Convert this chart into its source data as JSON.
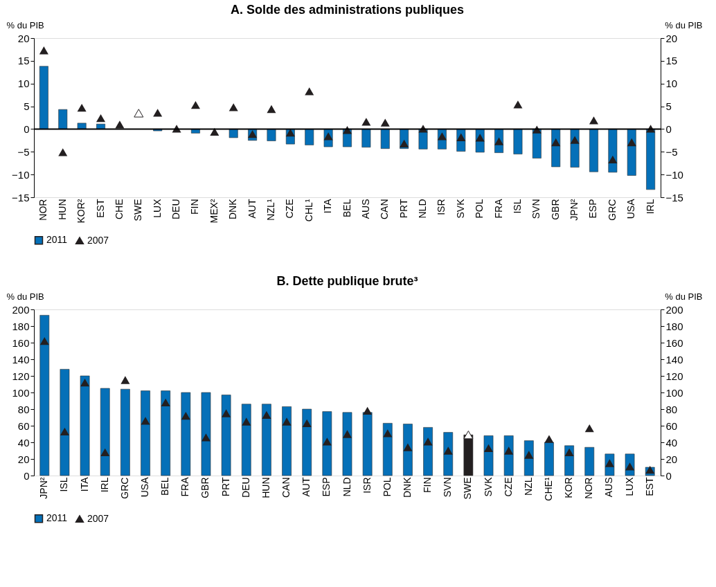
{
  "chart_data": [
    {
      "type": "bar",
      "title": "A. Solde des administrations publiques",
      "ylabel": "% du PIB",
      "y2label": "% du PIB",
      "categories": [
        "NOR",
        "HUN",
        "KOR²",
        "EST",
        "CHE",
        "SWE",
        "LUX",
        "DEU",
        "FIN",
        "MEX²",
        "DNK",
        "AUT",
        "NZL¹",
        "CZE",
        "CHL¹",
        "ITA",
        "BEL",
        "AUS",
        "CAN",
        "PRT",
        "NLD",
        "ISR",
        "SVK",
        "POL",
        "FRA",
        "ISL",
        "SVN",
        "GBR",
        "JPN²",
        "ESP",
        "GRC",
        "USA",
        "IRL"
      ],
      "series": [
        {
          "name": "2011",
          "color": "#0570b8",
          "colors": [
            "#0570b8",
            "#0570b8",
            "#0570b8",
            "#0570b8",
            "#0570b8",
            "#231f20",
            "#0570b8",
            "#0570b8",
            "#0570b8",
            "#0570b8",
            "#0570b8",
            "#0570b8",
            "#0570b8",
            "#0570b8",
            "#0570b8",
            "#0570b8",
            "#0570b8",
            "#0570b8",
            "#0570b8",
            "#0570b8",
            "#0570b8",
            "#0570b8",
            "#0570b8",
            "#0570b8",
            "#0570b8",
            "#0570b8",
            "#0570b8",
            "#0570b8",
            "#0570b8",
            "#0570b8",
            "#0570b8",
            "#0570b8",
            "#0570b8"
          ],
          "values": [
            13.8,
            4.3,
            1.3,
            1.1,
            null,
            null,
            -0.4,
            null,
            -0.9,
            null,
            -1.9,
            -2.5,
            -2.6,
            -3.3,
            -3.5,
            -3.9,
            -3.9,
            -4.0,
            -4.3,
            -4.3,
            -4.4,
            -4.4,
            -4.9,
            -5.1,
            -5.2,
            -5.5,
            -6.4,
            -8.3,
            -8.4,
            -9.4,
            -9.5,
            -10.2,
            -13.3
          ]
        },
        {
          "name": "2007",
          "type": "scatter",
          "marker": "triangle",
          "color": "#231f20",
          "colors": [
            "#231f20",
            "#231f20",
            "#231f20",
            "#231f20",
            "#231f20",
            "#ffffff",
            "#231f20",
            "#231f20",
            "#231f20",
            "#231f20",
            "#231f20",
            "#231f20",
            "#231f20",
            "#231f20",
            "#231f20",
            "#231f20",
            "#231f20",
            "#231f20",
            "#231f20",
            "#231f20",
            "#231f20",
            "#231f20",
            "#231f20",
            "#231f20",
            "#231f20",
            "#231f20",
            "#231f20",
            "#231f20",
            "#231f20",
            "#231f20",
            "#231f20",
            "#231f20",
            "#231f20"
          ],
          "values": [
            17.3,
            -5.1,
            4.7,
            2.4,
            1.0,
            3.5,
            3.6,
            0.1,
            5.3,
            -0.6,
            4.8,
            -1.1,
            4.4,
            -0.8,
            8.3,
            -1.6,
            -0.2,
            1.6,
            1.4,
            -3.2,
            0.1,
            -1.6,
            -1.8,
            -1.9,
            -2.7,
            5.4,
            -0.1,
            -2.9,
            -2.4,
            1.9,
            -6.7,
            -2.9,
            0.1
          ]
        }
      ],
      "ylim": [
        -15,
        20
      ],
      "yticks": [
        -15,
        -10,
        -5,
        0,
        5,
        10,
        15,
        20
      ],
      "y2lim": [
        -15,
        20
      ],
      "y2ticks": [
        -15,
        -10,
        -5,
        0,
        5,
        10,
        15,
        20
      ],
      "ref_lines": [
        {
          "axis": "y",
          "value": 0,
          "color": "#000000"
        }
      ],
      "grid": false,
      "legend": "bottom"
    },
    {
      "type": "bar",
      "title": "B. Dette publique brute³",
      "ylabel": "% du PIB",
      "y2label": "% du PIB",
      "categories": [
        "JPN²",
        "ISL",
        "ITA",
        "IRL",
        "GRC",
        "USA",
        "BEL",
        "FRA",
        "GBR",
        "PRT",
        "DEU",
        "HUN",
        "CAN",
        "AUT",
        "ESP",
        "NLD",
        "ISR",
        "POL",
        "DNK",
        "FIN",
        "SVN",
        "SWE",
        "SVK",
        "CZE",
        "NZL",
        "CHE¹",
        "KOR",
        "NOR",
        "AUS",
        "LUX",
        "EST"
      ],
      "series": [
        {
          "name": "2011",
          "color": "#0570b8",
          "colors": [
            "#0570b8",
            "#0570b8",
            "#0570b8",
            "#0570b8",
            "#0570b8",
            "#0570b8",
            "#0570b8",
            "#0570b8",
            "#0570b8",
            "#0570b8",
            "#0570b8",
            "#0570b8",
            "#0570b8",
            "#0570b8",
            "#0570b8",
            "#0570b8",
            "#0570b8",
            "#0570b8",
            "#0570b8",
            "#0570b8",
            "#0570b8",
            "#231f20",
            "#0570b8",
            "#0570b8",
            "#0570b8",
            "#0570b8",
            "#0570b8",
            "#0570b8",
            "#0570b8",
            "#0570b8",
            "#0570b8"
          ],
          "values": [
            193,
            128,
            120,
            105,
            104,
            102,
            102,
            100,
            100,
            97,
            86,
            86,
            83,
            80,
            77,
            76,
            76,
            63,
            62,
            58,
            52,
            49,
            48,
            48,
            42,
            40,
            36,
            34,
            26,
            26,
            10
          ]
        },
        {
          "name": "2007",
          "type": "scatter",
          "marker": "triangle",
          "color": "#231f20",
          "colors": [
            "#231f20",
            "#231f20",
            "#231f20",
            "#231f20",
            "#231f20",
            "#231f20",
            "#231f20",
            "#231f20",
            "#231f20",
            "#231f20",
            "#231f20",
            "#231f20",
            "#231f20",
            "#231f20",
            "#231f20",
            "#231f20",
            "#231f20",
            "#231f20",
            "#231f20",
            "#231f20",
            "#231f20",
            "#ffffff",
            "#231f20",
            "#231f20",
            "#231f20",
            "#231f20",
            "#231f20",
            "#231f20",
            "#231f20",
            "#231f20",
            "#231f20"
          ],
          "values": [
            162,
            53,
            112,
            28,
            115,
            66,
            88,
            72,
            46,
            75,
            65,
            73,
            65,
            63,
            41,
            50,
            78,
            51,
            34,
            41,
            30,
            49,
            33,
            30,
            25,
            44,
            28,
            57,
            15,
            11,
            7
          ]
        }
      ],
      "ylim": [
        0,
        200
      ],
      "yticks": [
        0,
        20,
        40,
        60,
        80,
        100,
        120,
        140,
        160,
        180,
        200
      ],
      "y2lim": [
        0,
        200
      ],
      "y2ticks": [
        0,
        20,
        40,
        60,
        80,
        100,
        120,
        140,
        160,
        180,
        200
      ],
      "grid": false,
      "legend": "bottom"
    }
  ]
}
